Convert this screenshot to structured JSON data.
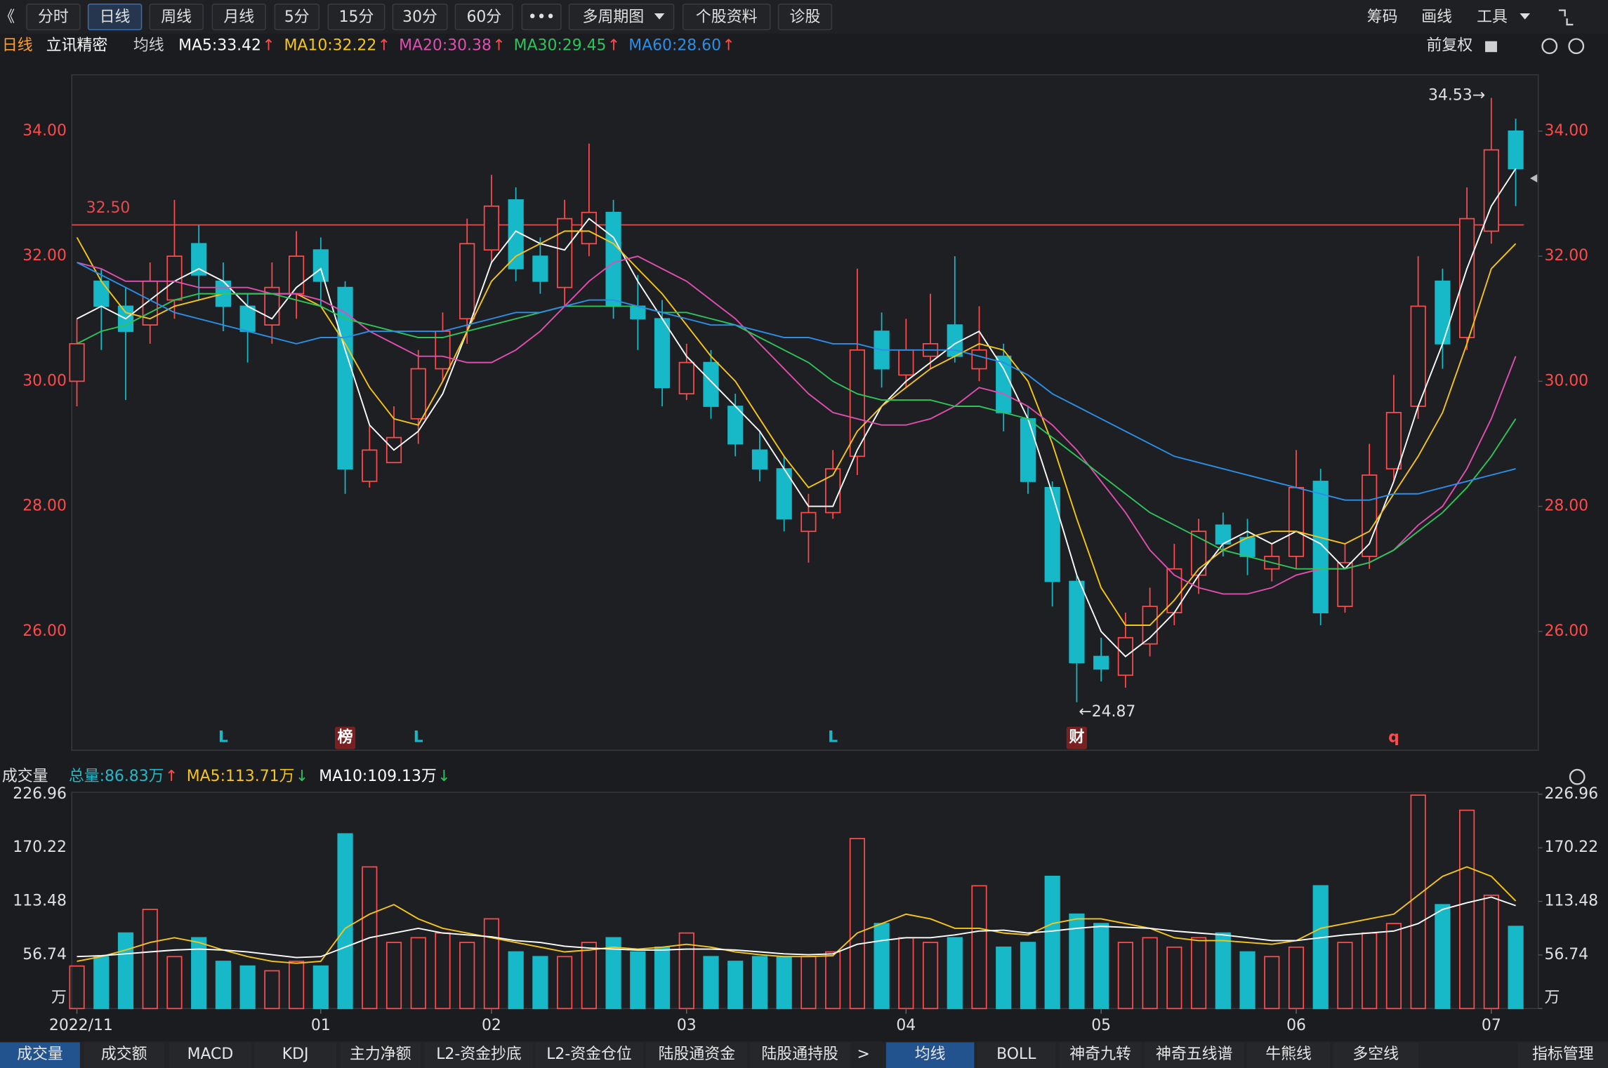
{
  "toolbar": {
    "left": [
      "《",
      "分时",
      "日线",
      "周线",
      "月线",
      "5分",
      "15分",
      "30分",
      "60分",
      "•••",
      "多周期图",
      "个股资料",
      "诊股"
    ],
    "left_active": 2,
    "right": [
      "筹码",
      "画线",
      "工具"
    ]
  },
  "header": {
    "period": "日线",
    "stock": "立讯精密",
    "indicator": "均线",
    "adjust": "前复权"
  },
  "chart_data": [
    {
      "type": "candlestick",
      "up_color": "#ff4a4a",
      "down_color": "#17b8c8",
      "ylim": [
        24.1,
        34.9
      ],
      "yticks": [
        {
          "value": 26,
          "label": "26.00"
        },
        {
          "value": 28,
          "label": "28.00"
        },
        {
          "value": 30,
          "label": "30.00"
        },
        {
          "value": 32,
          "label": "32.00"
        },
        {
          "value": 34,
          "label": "34.00"
        }
      ],
      "open": [
        30.0,
        31.6,
        31.2,
        30.9,
        31.3,
        32.2,
        31.6,
        31.2,
        30.9,
        31.4,
        32.1,
        31.5,
        28.4,
        28.7,
        29.4,
        30.2,
        31.0,
        32.1,
        32.9,
        32.0,
        31.5,
        32.2,
        32.7,
        31.2,
        31.0,
        29.8,
        30.3,
        29.6,
        28.9,
        28.6,
        27.6,
        27.9,
        28.8,
        30.8,
        30.1,
        30.4,
        30.9,
        30.2,
        30.4,
        29.4,
        28.3,
        26.8,
        25.6,
        25.3,
        25.8,
        26.3,
        26.9,
        27.7,
        27.5,
        27.0,
        27.2,
        28.4,
        26.4,
        27.2,
        28.6,
        29.6,
        31.6,
        30.7,
        32.4,
        34.0
      ],
      "high": [
        31.0,
        31.8,
        31.5,
        31.9,
        32.9,
        32.5,
        31.9,
        31.4,
        31.9,
        32.4,
        32.3,
        31.6,
        29.3,
        29.6,
        30.5,
        31.1,
        32.6,
        33.3,
        33.1,
        32.3,
        32.9,
        33.8,
        32.9,
        31.7,
        31.3,
        30.6,
        30.5,
        29.8,
        29.2,
        28.8,
        28.2,
        28.9,
        31.8,
        31.1,
        31.0,
        31.4,
        32.0,
        31.2,
        30.6,
        29.6,
        28.4,
        26.9,
        25.9,
        26.3,
        26.7,
        27.4,
        27.8,
        27.9,
        27.8,
        27.4,
        28.9,
        28.6,
        27.4,
        29.0,
        30.1,
        32.0,
        31.8,
        33.1,
        34.53,
        34.2
      ],
      "low": [
        29.6,
        30.5,
        29.7,
        30.6,
        31.0,
        31.3,
        30.8,
        30.3,
        30.6,
        31.0,
        31.2,
        28.2,
        28.3,
        28.7,
        29.0,
        30.0,
        30.6,
        31.9,
        31.6,
        31.4,
        31.2,
        32.0,
        31.0,
        30.5,
        29.6,
        29.7,
        29.4,
        28.8,
        28.4,
        27.6,
        27.1,
        27.8,
        28.5,
        29.9,
        29.9,
        30.2,
        30.3,
        30.0,
        29.2,
        28.2,
        26.4,
        24.87,
        25.2,
        25.1,
        25.6,
        26.1,
        26.6,
        27.2,
        26.9,
        26.8,
        27.0,
        26.1,
        26.3,
        27.0,
        28.4,
        29.4,
        30.2,
        30.5,
        32.2,
        32.8
      ],
      "close": [
        30.6,
        31.2,
        30.8,
        31.6,
        32.0,
        31.7,
        31.2,
        30.8,
        31.5,
        32.0,
        31.6,
        28.6,
        28.9,
        29.1,
        30.2,
        30.8,
        32.2,
        32.8,
        31.8,
        31.6,
        32.6,
        32.7,
        31.2,
        31.0,
        29.9,
        30.3,
        29.6,
        29.0,
        28.6,
        27.8,
        27.9,
        28.6,
        30.5,
        30.2,
        30.5,
        30.6,
        30.4,
        30.5,
        29.5,
        28.4,
        26.8,
        25.5,
        25.4,
        25.9,
        26.4,
        27.0,
        27.6,
        27.4,
        27.2,
        27.2,
        28.3,
        26.3,
        27.1,
        28.5,
        29.5,
        31.2,
        30.6,
        32.6,
        33.7,
        33.4
      ],
      "max_label": "34.53→",
      "min_label": "←24.87",
      "hline": {
        "value": 32.5,
        "label": "32.50",
        "color": "#e84b4b"
      },
      "markers": [
        null,
        null,
        null,
        null,
        null,
        null,
        {
          "label": "L",
          "color": "#17b8c8"
        },
        null,
        null,
        null,
        null,
        {
          "label": "榜",
          "color": "#ffffff",
          "box": "#7a2020"
        },
        null,
        null,
        {
          "label": "L",
          "color": "#17b8c8"
        },
        null,
        null,
        null,
        null,
        null,
        null,
        null,
        null,
        null,
        null,
        null,
        null,
        null,
        null,
        null,
        null,
        {
          "label": "L",
          "color": "#17b8c8"
        },
        null,
        null,
        null,
        null,
        null,
        null,
        null,
        null,
        null,
        {
          "label": "财",
          "color": "#ffffff",
          "box": "#7a2020"
        },
        null,
        null,
        null,
        null,
        null,
        null,
        null,
        null,
        null,
        null,
        null,
        null,
        {
          "label": "q",
          "color": "#ff4a4a"
        },
        null,
        null,
        null,
        null,
        null
      ],
      "series": [
        {
          "name": "MA5:33.42",
          "trend": "↑",
          "color": "#ffffff",
          "values": [
            31.0,
            31.2,
            31.0,
            31.3,
            31.6,
            31.8,
            31.6,
            31.2,
            31.0,
            31.5,
            31.8,
            30.5,
            29.3,
            28.9,
            29.2,
            29.8,
            30.8,
            31.9,
            32.4,
            32.2,
            32.1,
            32.6,
            32.3,
            31.6,
            31.0,
            30.4,
            30.0,
            29.6,
            29.2,
            28.6,
            28.0,
            28.0,
            28.9,
            29.6,
            30.0,
            30.3,
            30.6,
            30.8,
            30.2,
            29.4,
            28.2,
            26.9,
            26.0,
            25.6,
            25.9,
            26.3,
            26.9,
            27.4,
            27.6,
            27.4,
            27.6,
            27.4,
            27.0,
            27.4,
            28.4,
            29.6,
            30.6,
            31.8,
            32.8,
            33.4
          ]
        },
        {
          "name": "MA10:32.22",
          "trend": "↑",
          "color": "#f5c518",
          "values": [
            32.3,
            31.6,
            31.1,
            31.0,
            31.2,
            31.3,
            31.4,
            31.4,
            31.4,
            31.4,
            31.2,
            30.6,
            29.9,
            29.4,
            29.3,
            30.0,
            30.8,
            31.6,
            32.0,
            32.2,
            32.4,
            32.4,
            32.2,
            31.8,
            31.4,
            30.9,
            30.4,
            30.0,
            29.4,
            28.8,
            28.3,
            28.5,
            29.2,
            29.6,
            29.9,
            30.2,
            30.4,
            30.6,
            30.5,
            30.0,
            29.0,
            27.8,
            26.7,
            26.1,
            26.1,
            26.5,
            27.0,
            27.3,
            27.5,
            27.6,
            27.6,
            27.5,
            27.4,
            27.6,
            28.2,
            28.8,
            29.5,
            30.6,
            31.8,
            32.2
          ]
        },
        {
          "name": "MA20:30.38",
          "trend": "↑",
          "color": "#e04fb0",
          "values": [
            31.9,
            31.8,
            31.6,
            31.6,
            31.6,
            31.5,
            31.5,
            31.5,
            31.4,
            31.4,
            31.3,
            31.1,
            30.8,
            30.6,
            30.4,
            30.4,
            30.3,
            30.3,
            30.5,
            30.8,
            31.2,
            31.6,
            31.9,
            32.0,
            31.8,
            31.6,
            31.3,
            31.0,
            30.6,
            30.2,
            29.8,
            29.5,
            29.4,
            29.3,
            29.3,
            29.4,
            29.6,
            29.9,
            29.8,
            29.6,
            29.3,
            28.9,
            28.4,
            27.9,
            27.3,
            26.9,
            26.7,
            26.6,
            26.6,
            26.7,
            26.9,
            27.0,
            27.0,
            27.1,
            27.3,
            27.7,
            28.0,
            28.6,
            29.4,
            30.4
          ]
        },
        {
          "name": "MA30:29.45",
          "trend": "↑",
          "color": "#2ec45a",
          "values": [
            30.6,
            30.8,
            30.9,
            31.1,
            31.3,
            31.4,
            31.4,
            31.4,
            31.4,
            31.3,
            31.2,
            31.0,
            30.9,
            30.8,
            30.7,
            30.7,
            30.8,
            30.9,
            31.0,
            31.1,
            31.2,
            31.2,
            31.2,
            31.2,
            31.1,
            31.1,
            31.0,
            30.9,
            30.7,
            30.5,
            30.3,
            30.0,
            29.8,
            29.7,
            29.7,
            29.7,
            29.6,
            29.6,
            29.5,
            29.4,
            29.1,
            28.8,
            28.5,
            28.2,
            27.9,
            27.7,
            27.5,
            27.3,
            27.2,
            27.1,
            27.0,
            27.0,
            27.0,
            27.1,
            27.3,
            27.6,
            27.9,
            28.3,
            28.8,
            29.4
          ]
        },
        {
          "name": "MA60:28.60",
          "trend": "↑",
          "color": "#2b8fe8",
          "values": [
            31.9,
            31.7,
            31.5,
            31.3,
            31.1,
            31.0,
            30.9,
            30.8,
            30.7,
            30.6,
            30.7,
            30.7,
            30.8,
            30.8,
            30.8,
            30.8,
            30.9,
            31.0,
            31.1,
            31.1,
            31.2,
            31.3,
            31.3,
            31.2,
            31.1,
            31.0,
            30.9,
            30.9,
            30.8,
            30.7,
            30.7,
            30.6,
            30.6,
            30.5,
            30.5,
            30.5,
            30.5,
            30.4,
            30.3,
            30.1,
            29.8,
            29.6,
            29.4,
            29.2,
            29.0,
            28.8,
            28.7,
            28.6,
            28.5,
            28.4,
            28.3,
            28.2,
            28.1,
            28.1,
            28.2,
            28.2,
            28.3,
            28.4,
            28.5,
            28.6
          ]
        }
      ]
    },
    {
      "type": "bar",
      "title": "成交量",
      "ylim": [
        0,
        229
      ],
      "yticks": [
        {
          "value": 0,
          "label": "万"
        },
        56.74,
        113.48,
        170.22,
        226.96
      ],
      "total": {
        "text": "总量:86.83万",
        "trend": "↑",
        "color": "#22b8c8"
      },
      "categories": [
        "2022/11",
        null,
        null,
        null,
        null,
        null,
        null,
        null,
        null,
        null,
        "01",
        null,
        null,
        null,
        null,
        null,
        null,
        "02",
        null,
        null,
        null,
        null,
        null,
        null,
        null,
        "03",
        null,
        null,
        null,
        null,
        null,
        null,
        null,
        null,
        "04",
        null,
        null,
        null,
        null,
        null,
        null,
        null,
        "05",
        null,
        null,
        null,
        null,
        null,
        null,
        null,
        "06",
        null,
        null,
        null,
        null,
        null,
        null,
        null,
        "07",
        null
      ],
      "values": [
        45,
        55,
        80,
        105,
        55,
        75,
        50,
        45,
        40,
        50,
        45,
        185,
        150,
        70,
        75,
        80,
        70,
        95,
        60,
        55,
        55,
        70,
        75,
        60,
        65,
        80,
        55,
        50,
        55,
        55,
        55,
        60,
        180,
        90,
        75,
        70,
        75,
        130,
        65,
        70,
        140,
        100,
        90,
        70,
        75,
        65,
        75,
        80,
        60,
        55,
        65,
        130,
        70,
        80,
        90,
        226,
        110,
        210,
        120,
        87
      ],
      "series": [
        {
          "name": "MA5:113.71万",
          "trend": "↓",
          "color": "#f5c518",
          "values": [
            50,
            55,
            62,
            70,
            75,
            70,
            62,
            55,
            50,
            48,
            50,
            85,
            100,
            110,
            95,
            85,
            80,
            75,
            70,
            65,
            60,
            62,
            65,
            63,
            65,
            68,
            65,
            60,
            57,
            55,
            55,
            56,
            80,
            90,
            100,
            95,
            85,
            85,
            80,
            78,
            90,
            95,
            95,
            90,
            85,
            75,
            72,
            72,
            70,
            68,
            72,
            85,
            90,
            95,
            100,
            120,
            140,
            150,
            140,
            114
          ]
        },
        {
          "name": "MA10:109.13万",
          "trend": "↓",
          "color": "#ffffff",
          "values": [
            55,
            56,
            58,
            60,
            62,
            63,
            62,
            60,
            57,
            54,
            55,
            65,
            75,
            80,
            85,
            80,
            78,
            76,
            72,
            70,
            66,
            64,
            63,
            62,
            62,
            63,
            63,
            62,
            60,
            58,
            57,
            58,
            68,
            72,
            75,
            75,
            78,
            82,
            83,
            80,
            82,
            85,
            87,
            86,
            85,
            82,
            80,
            78,
            75,
            72,
            72,
            75,
            78,
            80,
            82,
            90,
            105,
            112,
            118,
            109
          ]
        }
      ]
    }
  ],
  "bottom_tabs": {
    "left": [
      "成交量",
      "成交额",
      "MACD",
      "KDJ",
      "主力净额",
      "L2-资金抄底",
      "L2-资金仓位",
      "陆股通资金",
      "陆股通持股"
    ],
    "more": ">",
    "right": [
      "均线",
      "BOLL",
      "神奇九转",
      "神奇五线谱",
      "牛熊线",
      "多空线"
    ],
    "manage": "指标管理"
  }
}
